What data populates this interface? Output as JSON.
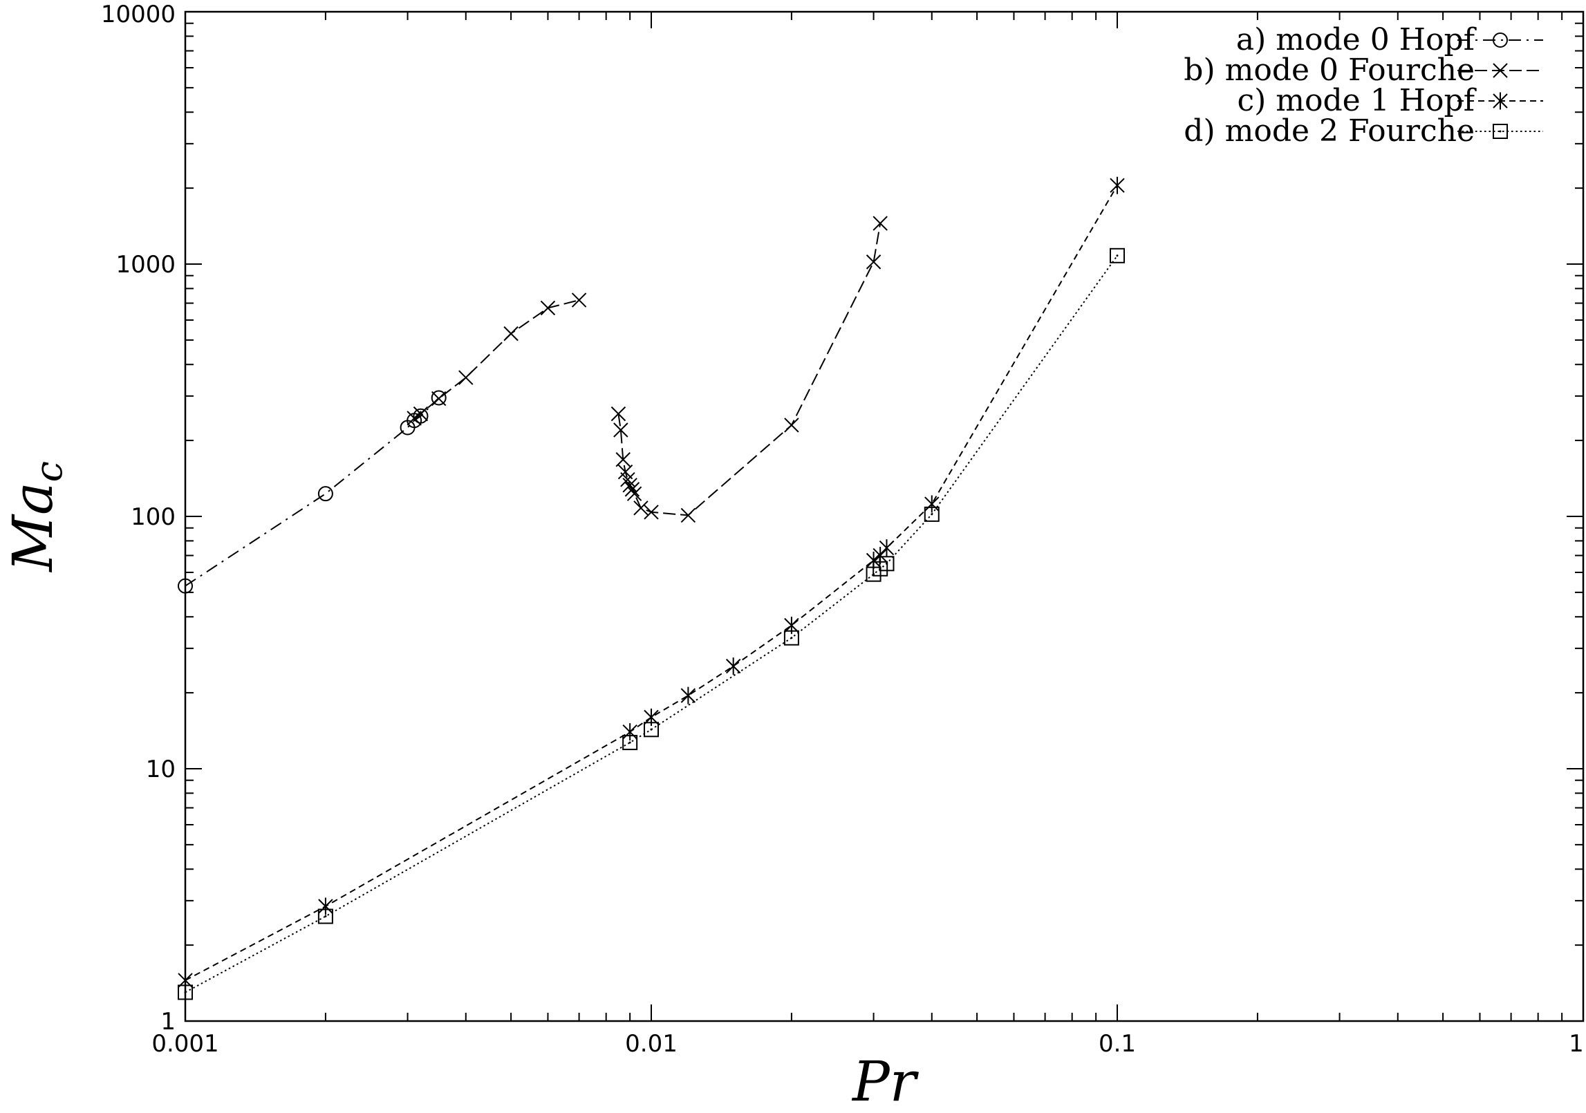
{
  "chart_data": {
    "type": "line",
    "xscale": "log",
    "yscale": "log",
    "xlim": [
      0.001,
      1
    ],
    "ylim": [
      1,
      10000
    ],
    "x_ticks": [
      {
        "value": 0.001,
        "label": "0.001"
      },
      {
        "value": 0.01,
        "label": "0.01"
      },
      {
        "value": 0.1,
        "label": "0.1"
      },
      {
        "value": 1,
        "label": "1"
      }
    ],
    "y_ticks": [
      {
        "value": 1,
        "label": "1"
      },
      {
        "value": 10,
        "label": "10"
      },
      {
        "value": 100,
        "label": "100"
      },
      {
        "value": 1000,
        "label": "1000"
      },
      {
        "value": 10000,
        "label": "10000"
      }
    ],
    "xlabel": "Pr",
    "ylabel": {
      "base": "Ma",
      "sub": "c"
    },
    "grid": false,
    "legend_position": "top-right",
    "series": [
      {
        "name": "a) mode 0 Hopf",
        "marker": "circle",
        "dash": "dash-dot",
        "points": [
          [
            0.001,
            53
          ],
          [
            0.002,
            123
          ],
          [
            0.003,
            225
          ],
          [
            0.0031,
            240
          ],
          [
            0.0032,
            250
          ],
          [
            0.0035,
            295
          ]
        ]
      },
      {
        "name": "b) mode 0 Fourche",
        "marker": "cross",
        "dash": "long-dash",
        "segments": [
          [
            [
              0.0031,
              245
            ],
            [
              0.0032,
              255
            ],
            [
              0.0035,
              293
            ],
            [
              0.004,
              355
            ],
            [
              0.005,
              530
            ],
            [
              0.006,
              670
            ],
            [
              0.007,
              720
            ]
          ],
          [
            [
              0.0085,
              255
            ],
            [
              0.0086,
              220
            ],
            [
              0.0087,
              168
            ],
            [
              0.0088,
              150
            ],
            [
              0.0089,
              140
            ],
            [
              0.009,
              133
            ],
            [
              0.0091,
              128
            ],
            [
              0.0092,
              123
            ],
            [
              0.0095,
              108
            ],
            [
              0.01,
              104
            ],
            [
              0.012,
              101
            ],
            [
              0.02,
              230
            ],
            [
              0.03,
              1020
            ],
            [
              0.031,
              1450
            ]
          ]
        ]
      },
      {
        "name": "c) mode 1 Hopf",
        "marker": "asterisk",
        "dash": "short-dash",
        "points": [
          [
            0.001,
            1.45
          ],
          [
            0.002,
            2.85
          ],
          [
            0.009,
            14
          ],
          [
            0.01,
            16
          ],
          [
            0.012,
            19.5
          ],
          [
            0.015,
            25.5
          ],
          [
            0.02,
            37
          ],
          [
            0.03,
            67
          ],
          [
            0.031,
            70
          ],
          [
            0.032,
            75
          ],
          [
            0.04,
            112
          ],
          [
            0.1,
            2050
          ]
        ]
      },
      {
        "name": "d) mode 2 Fourche",
        "marker": "square",
        "dash": "dotted",
        "points": [
          [
            0.001,
            1.3
          ],
          [
            0.002,
            2.6
          ],
          [
            0.009,
            12.7
          ],
          [
            0.01,
            14.3
          ],
          [
            0.02,
            33
          ],
          [
            0.03,
            59
          ],
          [
            0.031,
            62
          ],
          [
            0.032,
            65
          ],
          [
            0.04,
            102
          ],
          [
            0.1,
            1080
          ]
        ]
      }
    ]
  }
}
